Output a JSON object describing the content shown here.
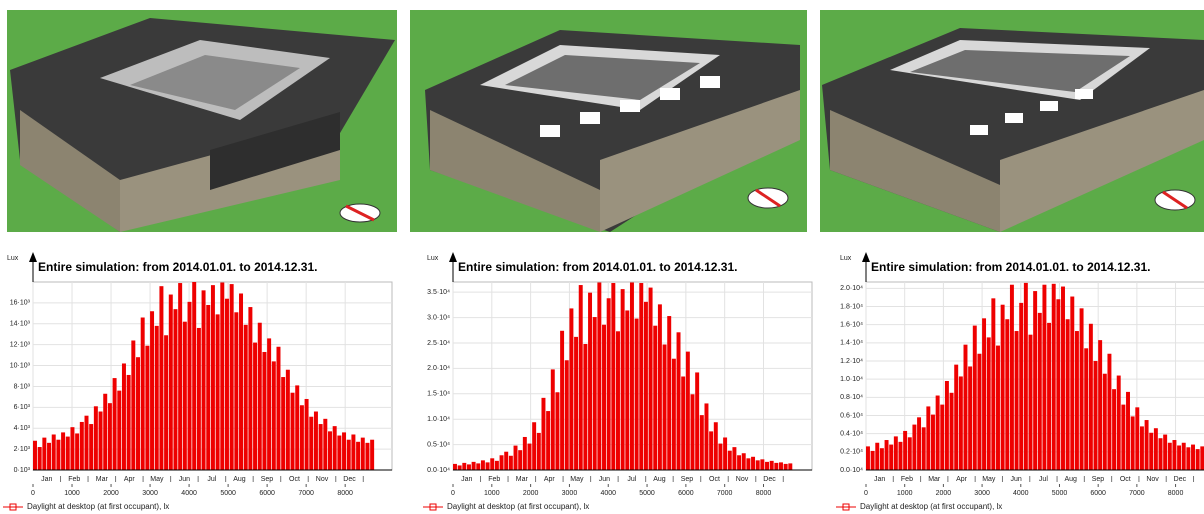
{
  "chart_data": [
    {
      "type": "bar",
      "title": "Entire simulation: from 2014.01.01. to 2014.12.31.",
      "y_label": "Lux",
      "color": "#ee0000",
      "grid": true,
      "legend": "Daylight at desktop (at first occupant), lx",
      "months": [
        "Jan",
        "Feb",
        "Mar",
        "Apr",
        "May",
        "Jun",
        "Jul",
        "Aug",
        "Sep",
        "Oct",
        "Nov",
        "Dec"
      ],
      "xlim": [
        0,
        9200
      ],
      "xticks": [
        0,
        1000,
        2000,
        3000,
        4000,
        5000,
        6000,
        7000,
        8000
      ],
      "ylim": [
        0,
        18000
      ],
      "yticks": [
        {
          "value": 0,
          "label": "0·10³"
        },
        {
          "value": 2000,
          "label": "2·10³"
        },
        {
          "value": 4000,
          "label": "4·10³"
        },
        {
          "value": 6000,
          "label": "6·10³"
        },
        {
          "value": 8000,
          "label": "8·10³"
        },
        {
          "value": 10000,
          "label": "10·10³"
        },
        {
          "value": 12000,
          "label": "12·10³"
        },
        {
          "value": 14000,
          "label": "14·10³"
        },
        {
          "value": 16000,
          "label": "16·10³"
        }
      ],
      "x": [
        0,
        120,
        240,
        360,
        480,
        600,
        720,
        840,
        960,
        1080,
        1200,
        1320,
        1440,
        1560,
        1680,
        1800,
        1920,
        2040,
        2160,
        2280,
        2400,
        2520,
        2640,
        2760,
        2880,
        3000,
        3120,
        3240,
        3360,
        3480,
        3600,
        3720,
        3840,
        3960,
        4080,
        4200,
        4320,
        4440,
        4560,
        4680,
        4800,
        4920,
        5040,
        5160,
        5280,
        5400,
        5520,
        5640,
        5760,
        5880,
        6000,
        6120,
        6240,
        6360,
        6480,
        6600,
        6720,
        6840,
        6960,
        7080,
        7200,
        7320,
        7440,
        7560,
        7680,
        7800,
        7920,
        8040,
        8160,
        8280,
        8400,
        8520,
        8640
      ],
      "values": [
        2800,
        2200,
        3100,
        2600,
        3400,
        2900,
        3600,
        3200,
        4100,
        3500,
        4600,
        5200,
        4400,
        6100,
        5600,
        7300,
        6400,
        8800,
        7600,
        10200,
        9100,
        12400,
        10800,
        14600,
        11900,
        15200,
        13800,
        17600,
        12900,
        16800,
        15400,
        17900,
        14200,
        16100,
        18000,
        13600,
        17200,
        15800,
        17700,
        14900,
        17950,
        16400,
        17800,
        15100,
        16900,
        13900,
        15600,
        12200,
        14100,
        11300,
        12600,
        10400,
        11800,
        8900,
        9600,
        7400,
        8100,
        6200,
        6800,
        5100,
        5600,
        4400,
        4900,
        3700,
        4200,
        3300,
        3600,
        2900,
        3400,
        2700,
        3100,
        2600,
        2900
      ]
    },
    {
      "type": "bar",
      "title": "Entire simulation: from 2014.01.01. to 2014.12.31.",
      "y_label": "Lux",
      "color": "#ee0000",
      "grid": true,
      "legend": "Daylight at desktop (at first occupant), lx",
      "months": [
        "Jan",
        "Feb",
        "Mar",
        "Apr",
        "May",
        "Jun",
        "Jul",
        "Aug",
        "Sep",
        "Oct",
        "Nov",
        "Dec"
      ],
      "xlim": [
        0,
        9250
      ],
      "xticks": [
        0,
        1000,
        2000,
        3000,
        4000,
        5000,
        6000,
        7000,
        8000
      ],
      "ylim": [
        0,
        37000
      ],
      "yticks": [
        {
          "value": 0,
          "label": "0.0·10⁴"
        },
        {
          "value": 5000,
          "label": "0.5·10⁴"
        },
        {
          "value": 10000,
          "label": "1.0·10⁴"
        },
        {
          "value": 15000,
          "label": "1.5·10⁴"
        },
        {
          "value": 20000,
          "label": "2.0·10⁴"
        },
        {
          "value": 25000,
          "label": "2.5·10⁴"
        },
        {
          "value": 30000,
          "label": "3.0·10⁴"
        },
        {
          "value": 35000,
          "label": "3.5·10⁴"
        }
      ],
      "x": [
        0,
        120,
        240,
        360,
        480,
        600,
        720,
        840,
        960,
        1080,
        1200,
        1320,
        1440,
        1560,
        1680,
        1800,
        1920,
        2040,
        2160,
        2280,
        2400,
        2520,
        2640,
        2760,
        2880,
        3000,
        3120,
        3240,
        3360,
        3480,
        3600,
        3720,
        3840,
        3960,
        4080,
        4200,
        4320,
        4440,
        4560,
        4680,
        4800,
        4920,
        5040,
        5160,
        5280,
        5400,
        5520,
        5640,
        5760,
        5880,
        6000,
        6120,
        6240,
        6360,
        6480,
        6600,
        6720,
        6840,
        6960,
        7080,
        7200,
        7320,
        7440,
        7560,
        7680,
        7800,
        7920,
        8040,
        8160,
        8280,
        8400,
        8520,
        8640
      ],
      "values": [
        1200,
        900,
        1400,
        1100,
        1600,
        1300,
        1900,
        1500,
        2300,
        1800,
        2900,
        3600,
        2800,
        4800,
        3900,
        6500,
        5200,
        9400,
        7300,
        14200,
        11600,
        19800,
        15300,
        27400,
        21600,
        31800,
        26200,
        36400,
        24800,
        34900,
        30100,
        36900,
        28600,
        33800,
        36800,
        27300,
        35600,
        31400,
        36900,
        29800,
        36800,
        33100,
        35900,
        28400,
        32600,
        24700,
        30300,
        21900,
        27100,
        18400,
        23300,
        14900,
        19200,
        10800,
        13100,
        7600,
        9400,
        5200,
        6400,
        3800,
        4500,
        2900,
        3300,
        2300,
        2600,
        1900,
        2100,
        1600,
        1800,
        1400,
        1500,
        1200,
        1300
      ]
    },
    {
      "type": "bar",
      "title": "Entire simulation: from 2014.01.01. to 2014.12.31.",
      "y_label": "Lux",
      "color": "#ee0000",
      "grid": true,
      "legend": "Daylight at desktop (at first occupant), lx",
      "months": [
        "Jan",
        "Feb",
        "Mar",
        "Apr",
        "May",
        "Jun",
        "Jul",
        "Aug",
        "Sep",
        "Oct",
        "Nov",
        "Dec"
      ],
      "xlim": [
        0,
        9200
      ],
      "xticks": [
        0,
        1000,
        2000,
        3000,
        4000,
        5000,
        6000,
        7000,
        8000
      ],
      "ylim": [
        0,
        20700
      ],
      "yticks": [
        {
          "value": 0,
          "label": "0.0·10⁴"
        },
        {
          "value": 2000,
          "label": "0.2·10⁴"
        },
        {
          "value": 4000,
          "label": "0.4·10⁴"
        },
        {
          "value": 6000,
          "label": "0.6·10⁴"
        },
        {
          "value": 8000,
          "label": "0.8·10⁴"
        },
        {
          "value": 10000,
          "label": "1.0·10⁴"
        },
        {
          "value": 12000,
          "label": "1.2·10⁴"
        },
        {
          "value": 14000,
          "label": "1.4·10⁴"
        },
        {
          "value": 16000,
          "label": "1.6·10⁴"
        },
        {
          "value": 18000,
          "label": "1.8·10⁴"
        },
        {
          "value": 20000,
          "label": "2.0·10⁴"
        }
      ],
      "x": [
        0,
        120,
        240,
        360,
        480,
        600,
        720,
        840,
        960,
        1080,
        1200,
        1320,
        1440,
        1560,
        1680,
        1800,
        1920,
        2040,
        2160,
        2280,
        2400,
        2520,
        2640,
        2760,
        2880,
        3000,
        3120,
        3240,
        3360,
        3480,
        3600,
        3720,
        3840,
        3960,
        4080,
        4200,
        4320,
        4440,
        4560,
        4680,
        4800,
        4920,
        5040,
        5160,
        5280,
        5400,
        5520,
        5640,
        5760,
        5880,
        6000,
        6120,
        6240,
        6360,
        6480,
        6600,
        6720,
        6840,
        6960,
        7080,
        7200,
        7320,
        7440,
        7560,
        7680,
        7800,
        7920,
        8040,
        8160,
        8280,
        8400,
        8520,
        8640
      ],
      "values": [
        2600,
        2100,
        3000,
        2400,
        3300,
        2800,
        3700,
        3100,
        4300,
        3600,
        5000,
        5800,
        4700,
        7000,
        6100,
        8200,
        7200,
        9800,
        8500,
        11600,
        10300,
        13800,
        11400,
        15900,
        12800,
        16700,
        14600,
        18900,
        13700,
        18200,
        16600,
        20400,
        15300,
        18400,
        20600,
        14900,
        19700,
        17300,
        20400,
        16200,
        20500,
        18800,
        20200,
        16600,
        19100,
        15300,
        17800,
        13400,
        16100,
        12000,
        14300,
        10600,
        12800,
        8900,
        10400,
        7200,
        8600,
        5900,
        6900,
        4800,
        5500,
        4100,
        4600,
        3500,
        3900,
        3000,
        3300,
        2700,
        3000,
        2500,
        2800,
        2300,
        2600
      ]
    }
  ]
}
